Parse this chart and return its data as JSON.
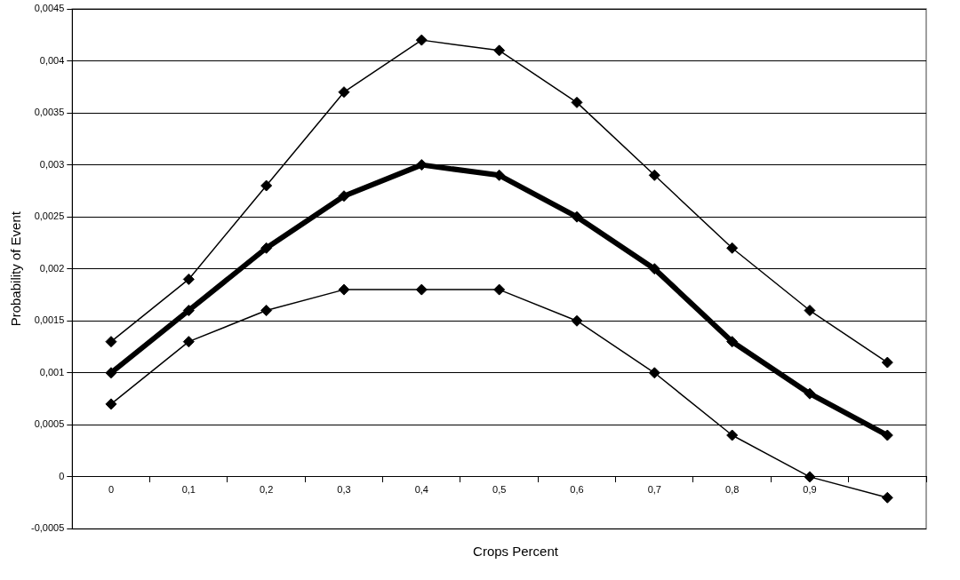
{
  "chart_data": {
    "type": "line",
    "xlabel": "Crops Percent",
    "ylabel": "Probability of Event",
    "categories": [
      "0",
      "0,1",
      "0,2",
      "0,3",
      "0,4",
      "0,5",
      "0,6",
      "0,7",
      "0,8",
      "0,9",
      null
    ],
    "series": [
      {
        "color": "#000000",
        "values": [
          0.0013,
          0.0019,
          0.0028,
          0.0037,
          0.0042,
          0.0041,
          0.0036,
          0.0029,
          0.0022,
          0.0016,
          0.0011
        ]
      },
      {
        "color": "#000000",
        "values": [
          0.001,
          0.0016,
          0.0022,
          0.0027,
          0.003,
          0.0029,
          0.0025,
          0.002,
          0.0013,
          0.0008,
          0.0004
        ]
      },
      {
        "color": "#000000",
        "values": [
          0.0007,
          0.0013,
          0.0016,
          0.0018,
          0.0018,
          0.0018,
          0.0015,
          0.001,
          0.0004,
          0,
          -0.0002
        ]
      }
    ],
    "ylim": [
      -0.0005,
      0.0045
    ],
    "yticks": [
      {
        "value": -0.0005,
        "label": "-0,0005"
      },
      0,
      {
        "value": 0.0005,
        "label": "0,0005"
      },
      {
        "value": 0.001,
        "label": "0,001"
      },
      {
        "value": 0.0015,
        "label": "0,0015"
      },
      {
        "value": 0.002,
        "label": "0,002"
      },
      {
        "value": 0.0025,
        "label": "0,0025"
      },
      {
        "value": 0.003,
        "label": "0,003"
      },
      {
        "value": 0.0035,
        "label": "0,0035"
      },
      {
        "value": 0.004,
        "label": "0,004"
      },
      {
        "value": 0.0045,
        "label": "0,0045"
      }
    ],
    "grid": "y",
    "legend": false,
    "marker": "diamond",
    "line_style": "solid"
  }
}
